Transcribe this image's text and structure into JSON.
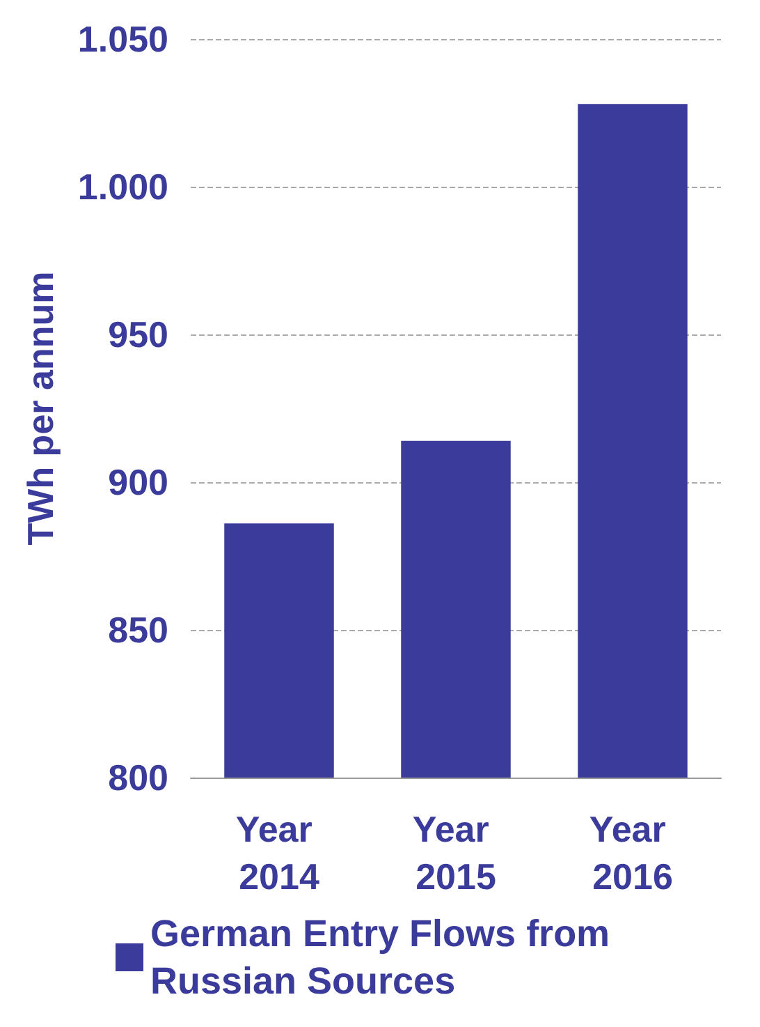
{
  "chart_data": {
    "type": "bar",
    "ylabel": "TWh per annum",
    "categories": [
      "Year 2014",
      "Year 2015",
      "Year 2016"
    ],
    "series": [
      {
        "name": "German Entry Flows from Russian Sources",
        "color": "#3b3b9c",
        "values": [
          886,
          914,
          1028
        ]
      }
    ],
    "ylim": [
      800,
      1050
    ],
    "yticks": [
      800,
      850,
      900,
      950,
      {
        "value": 1000,
        "label": "1.000"
      },
      {
        "value": 1050,
        "label": "1.050"
      }
    ],
    "grid": "y",
    "legend": "bottom"
  }
}
